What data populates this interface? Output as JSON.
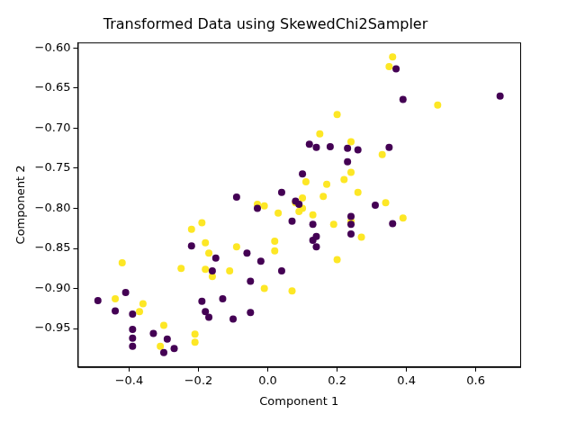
{
  "chart_data": {
    "type": "scatter",
    "title": "Transformed Data using SkewedChi2Sampler",
    "x_label": "Component 1",
    "y_label": "Component 2",
    "xlim": [
      -0.548,
      0.728
    ],
    "ylim": [
      -0.998,
      -0.593
    ],
    "xticks": [
      {
        "value": -0.4,
        "label": "−0.4"
      },
      {
        "value": -0.2,
        "label": "−0.2"
      },
      {
        "value": 0,
        "label": "0.0"
      },
      {
        "value": 0.2,
        "label": "0.2"
      },
      {
        "value": 0.4,
        "label": "0.4"
      },
      {
        "value": 0.6,
        "label": "0.6"
      }
    ],
    "yticks": [
      {
        "value": -0.95,
        "label": "−0.95"
      },
      {
        "value": -0.9,
        "label": "−0.90"
      },
      {
        "value": -0.85,
        "label": "−0.85"
      },
      {
        "value": -0.8,
        "label": "−0.80"
      },
      {
        "value": -0.75,
        "label": "−0.75"
      },
      {
        "value": -0.7,
        "label": "−0.70"
      },
      {
        "value": -0.65,
        "label": "−0.65"
      },
      {
        "value": -0.6,
        "label": "−0.60"
      }
    ],
    "grid": false,
    "marker": "circle",
    "series": [
      {
        "color": "#440154",
        "x": [
          -0.49,
          -0.44,
          -0.41,
          -0.39,
          -0.39,
          -0.39,
          -0.39,
          -0.33,
          -0.3,
          -0.29,
          -0.27,
          -0.22,
          -0.19,
          -0.18,
          -0.17,
          -0.16,
          -0.15,
          -0.13,
          -0.1,
          -0.09,
          -0.06,
          -0.05,
          -0.05,
          -0.03,
          -0.02,
          0.04,
          0.04,
          0.07,
          0.08,
          0.1,
          0.09,
          0.12,
          0.13,
          0.13,
          0.14,
          0.14,
          0.14,
          0.18,
          0.23,
          0.23,
          0.24,
          0.24,
          0.24,
          0.26,
          0.31,
          0.35,
          0.36,
          0.37,
          0.39,
          0.67
        ],
        "y": [
          -0.915,
          -0.928,
          -0.905,
          -0.932,
          -0.951,
          -0.962,
          -0.972,
          -0.956,
          -0.98,
          -0.963,
          -0.975,
          -0.847,
          -0.916,
          -0.929,
          -0.936,
          -0.878,
          -0.862,
          -0.913,
          -0.938,
          -0.786,
          -0.856,
          -0.891,
          -0.93,
          -0.8,
          -0.866,
          -0.78,
          -0.878,
          -0.816,
          -0.791,
          -0.757,
          -0.795,
          -0.72,
          -0.82,
          -0.84,
          -0.835,
          -0.848,
          -0.724,
          -0.723,
          -0.742,
          -0.725,
          -0.81,
          -0.82,
          -0.832,
          -0.727,
          -0.796,
          -0.724,
          -0.819,
          -0.626,
          -0.664,
          -0.66
        ]
      },
      {
        "color": "#fde725",
        "x": [
          -0.42,
          -0.44,
          -0.37,
          -0.36,
          -0.3,
          -0.31,
          -0.25,
          -0.22,
          -0.21,
          -0.21,
          -0.19,
          -0.18,
          -0.18,
          -0.17,
          -0.16,
          -0.11,
          -0.09,
          -0.03,
          -0.01,
          -0.01,
          0.02,
          0.02,
          0.03,
          0.07,
          0.08,
          0.09,
          0.1,
          0.1,
          0.11,
          0.13,
          0.15,
          0.16,
          0.17,
          0.19,
          0.2,
          0.2,
          0.22,
          0.24,
          0.24,
          0.24,
          0.26,
          0.27,
          0.33,
          0.34,
          0.35,
          0.36,
          0.39,
          0.49
        ],
        "y": [
          -0.868,
          -0.913,
          -0.929,
          -0.919,
          -0.946,
          -0.972,
          -0.875,
          -0.826,
          -0.957,
          -0.967,
          -0.818,
          -0.843,
          -0.876,
          -0.856,
          -0.885,
          -0.878,
          -0.848,
          -0.795,
          -0.9,
          -0.797,
          -0.841,
          -0.853,
          -0.806,
          -0.903,
          -0.793,
          -0.804,
          -0.787,
          -0.8,
          -0.767,
          -0.808,
          -0.707,
          -0.785,
          -0.77,
          -0.82,
          -0.864,
          -0.683,
          -0.764,
          -0.717,
          -0.755,
          -0.816,
          -0.78,
          -0.836,
          -0.733,
          -0.793,
          -0.623,
          -0.611,
          -0.812,
          -0.671
        ]
      }
    ]
  }
}
